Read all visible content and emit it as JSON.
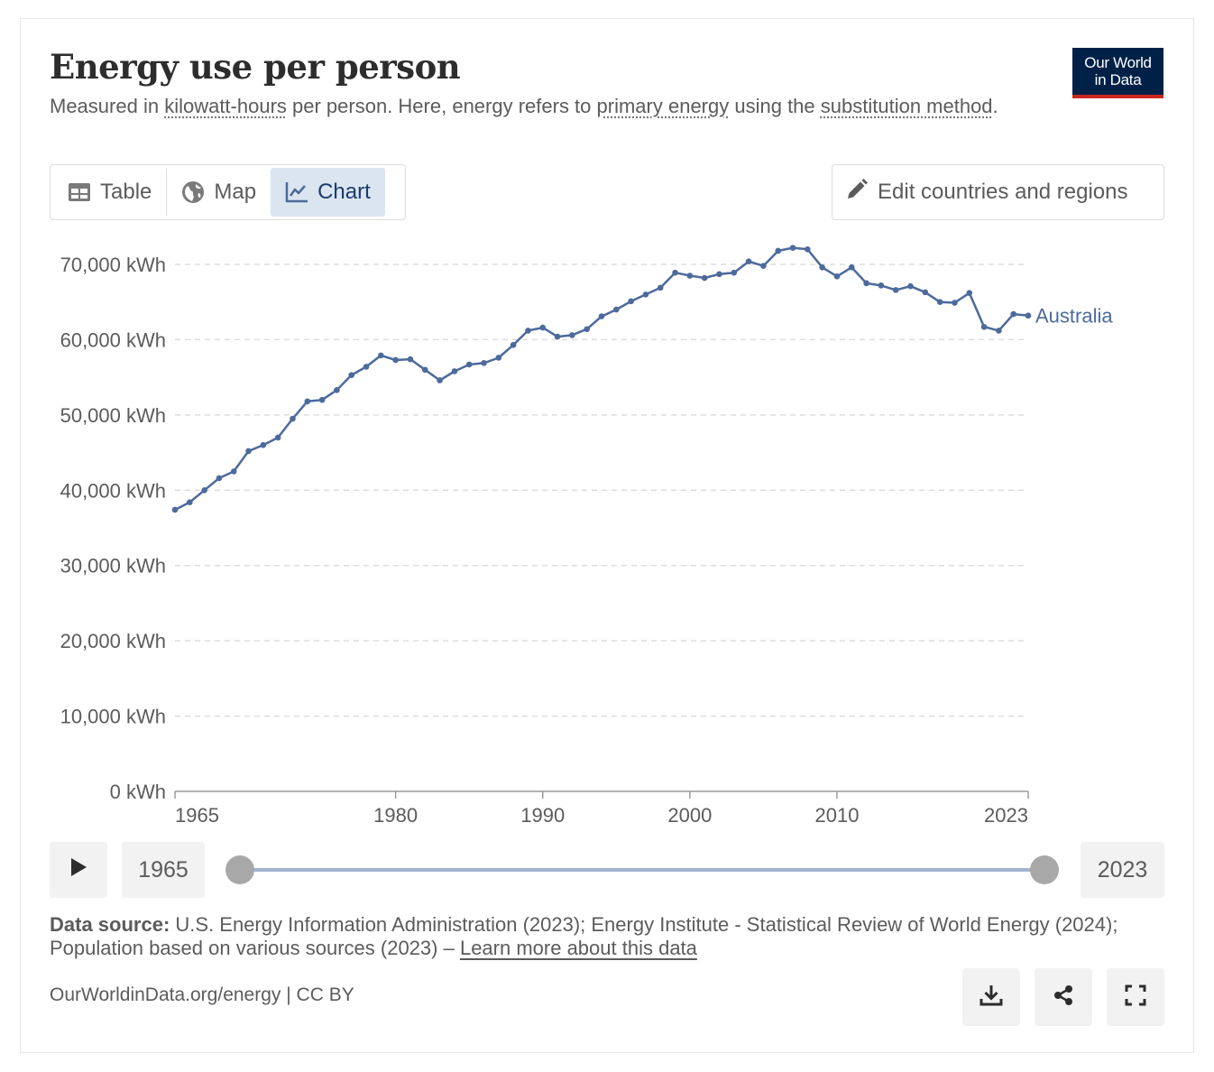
{
  "header": {
    "title": "Energy use per person",
    "subtitle": {
      "t1": "Measured in ",
      "term1": "kilowatt-hours",
      "t2": " per person. Here, energy refers to ",
      "term2": "primary energy",
      "t3": " using the ",
      "term3": "substitution method",
      "t4": "."
    },
    "logo_line1": "Our World",
    "logo_line2": "in Data"
  },
  "tabs": [
    {
      "label": "Table",
      "icon": "table-icon"
    },
    {
      "label": "Map",
      "icon": "globe-icon"
    },
    {
      "label": "Chart",
      "icon": "line-chart-icon",
      "active": true
    }
  ],
  "edit_button": {
    "label": "Edit countries and regions",
    "icon": "pencil-icon"
  },
  "chart_data": {
    "type": "line",
    "title": "Energy use per person",
    "xlabel": "",
    "ylabel": "",
    "unit": "kWh",
    "ylim": [
      0,
      70000
    ],
    "yticks": [
      0,
      10000,
      20000,
      30000,
      40000,
      50000,
      60000,
      70000
    ],
    "ytick_labels": [
      "0 kWh",
      "10,000 kWh",
      "20,000 kWh",
      "30,000 kWh",
      "40,000 kWh",
      "50,000 kWh",
      "60,000 kWh",
      "70,000 kWh"
    ],
    "xlim": [
      1965,
      2023
    ],
    "xtick_labels": [
      "1965",
      "1980",
      "1990",
      "2000",
      "2010",
      "2023"
    ],
    "grid": true,
    "line_color": "#4c6a9c",
    "series": [
      {
        "name": "Australia",
        "x": [
          1965,
          1966,
          1967,
          1968,
          1969,
          1970,
          1971,
          1972,
          1973,
          1974,
          1975,
          1976,
          1977,
          1978,
          1979,
          1980,
          1981,
          1982,
          1983,
          1984,
          1985,
          1986,
          1987,
          1988,
          1989,
          1990,
          1991,
          1992,
          1993,
          1994,
          1995,
          1996,
          1997,
          1998,
          1999,
          2000,
          2001,
          2002,
          2003,
          2004,
          2005,
          2006,
          2007,
          2008,
          2009,
          2010,
          2011,
          2012,
          2013,
          2014,
          2015,
          2016,
          2017,
          2018,
          2019,
          2020,
          2021,
          2022,
          2023
        ],
        "values": [
          37400,
          38400,
          40000,
          41600,
          42500,
          45200,
          46000,
          47000,
          49500,
          51800,
          52000,
          53300,
          55300,
          56400,
          57900,
          57300,
          57400,
          56000,
          54600,
          55800,
          56700,
          56900,
          57600,
          59300,
          61200,
          61600,
          60400,
          60600,
          61400,
          63100,
          64000,
          65100,
          66000,
          66900,
          68900,
          68500,
          68200,
          68700,
          68900,
          70400,
          69800,
          71800,
          72200,
          72000,
          69600,
          68400,
          69600,
          67500,
          67200,
          66600,
          67100,
          66300,
          65000,
          64900,
          66200,
          61700,
          61200,
          63400,
          63200
        ]
      }
    ]
  },
  "timeline": {
    "play_icon": "play-icon",
    "start_year": "1965",
    "end_year": "2023"
  },
  "source": {
    "label": "Data source:",
    "text": " U.S. Energy Information Administration (2023); Energy Institute - Statistical Review of World Energy (2024); Population based on various sources (2023) – ",
    "link": "Learn more about this data"
  },
  "footer": {
    "site": "OurWorldinData.org/energy",
    "separator": " | ",
    "license": "CC BY",
    "icons": [
      "download-icon",
      "share-icon",
      "fullscreen-icon"
    ]
  }
}
